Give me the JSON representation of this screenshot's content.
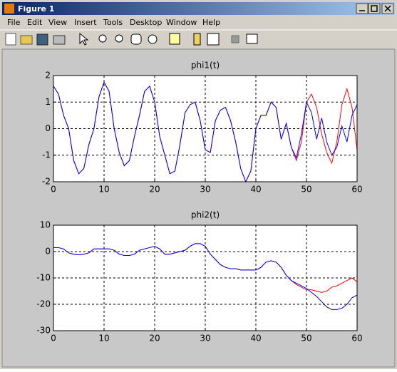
{
  "window": {
    "title": "Figure 1",
    "menu": [
      "File",
      "Edit",
      "View",
      "Insert",
      "Tools",
      "Desktop",
      "Window",
      "Help"
    ]
  },
  "chart_data": [
    {
      "type": "line",
      "title": "phi1(t)",
      "x": [
        0,
        1,
        2,
        3,
        4,
        5,
        6,
        7,
        8,
        9,
        10,
        11,
        12,
        13,
        14,
        15,
        16,
        17,
        18,
        19,
        20,
        21,
        22,
        23,
        24,
        25,
        26,
        27,
        28,
        29,
        30,
        31,
        32,
        33,
        34,
        35,
        36,
        37,
        38,
        39,
        40,
        41,
        42,
        43,
        44,
        45,
        46,
        47,
        48,
        49,
        50,
        51,
        52,
        53,
        54,
        55,
        56,
        57,
        58,
        59,
        60
      ],
      "series": [
        {
          "color": "#ff0000",
          "values": [
            1.6,
            1.3,
            0.5,
            0.0,
            -1.2,
            -1.7,
            -1.5,
            -0.6,
            0.0,
            1.2,
            1.75,
            1.4,
            0.0,
            -0.9,
            -1.4,
            -1.2,
            -0.3,
            0.5,
            1.4,
            1.6,
            1.0,
            -0.3,
            -1.0,
            -1.7,
            -1.6,
            -0.6,
            0.6,
            0.9,
            1.0,
            0.3,
            -0.8,
            -0.9,
            0.3,
            0.7,
            0.8,
            0.3,
            -0.5,
            -1.5,
            -2.0,
            -1.6,
            0.0,
            0.5,
            0.5,
            1.0,
            0.8,
            -0.4,
            0.2,
            -0.7,
            -1.2,
            -0.5,
            1.0,
            1.3,
            0.8,
            -0.2,
            -0.9,
            -1.3,
            -0.5,
            0.9,
            1.5,
            0.8,
            -0.8
          ]
        },
        {
          "color": "#0000ff",
          "values": [
            1.6,
            1.3,
            0.5,
            0.0,
            -1.2,
            -1.7,
            -1.5,
            -0.6,
            0.0,
            1.2,
            1.75,
            1.4,
            0.0,
            -0.9,
            -1.4,
            -1.2,
            -0.3,
            0.5,
            1.4,
            1.6,
            1.0,
            -0.3,
            -1.0,
            -1.7,
            -1.6,
            -0.6,
            0.6,
            0.9,
            1.0,
            0.3,
            -0.8,
            -0.9,
            0.3,
            0.7,
            0.8,
            0.3,
            -0.5,
            -1.5,
            -2.0,
            -1.6,
            0.0,
            0.5,
            0.5,
            1.0,
            0.8,
            -0.4,
            0.2,
            -0.7,
            -1.1,
            -0.2,
            1.0,
            0.6,
            -0.4,
            0.4,
            -0.5,
            -1.0,
            -0.7,
            0.1,
            -0.5,
            0.5,
            0.9
          ]
        }
      ],
      "xlim": [
        0,
        60
      ],
      "xticks": [
        0,
        10,
        20,
        30,
        40,
        50,
        60
      ],
      "ylim": [
        -2,
        2
      ],
      "yticks": [
        -2,
        -1,
        0,
        1,
        2
      ],
      "grid": true
    },
    {
      "type": "line",
      "title": "phi2(t)",
      "x": [
        0,
        1,
        2,
        3,
        4,
        5,
        6,
        7,
        8,
        9,
        10,
        11,
        12,
        13,
        14,
        15,
        16,
        17,
        18,
        19,
        20,
        21,
        22,
        23,
        24,
        25,
        26,
        27,
        28,
        29,
        30,
        31,
        32,
        33,
        34,
        35,
        36,
        37,
        38,
        39,
        40,
        41,
        42,
        43,
        44,
        45,
        46,
        47,
        48,
        49,
        50,
        51,
        52,
        53,
        54,
        55,
        56,
        57,
        58,
        59,
        60
      ],
      "series": [
        {
          "color": "#ff0000",
          "values": [
            1.5,
            1.5,
            1,
            -0.5,
            -1,
            -1.2,
            -1,
            -0.5,
            1,
            1,
            1,
            1,
            0.5,
            -1,
            -1.5,
            -1.5,
            -1,
            0.5,
            1,
            1.5,
            2,
            1,
            -1,
            -1,
            -0.5,
            0,
            0.5,
            2,
            3,
            3,
            2,
            -1,
            -3,
            -5,
            -6,
            -6.5,
            -6.5,
            -7,
            -7,
            -7,
            -7,
            -6,
            -4,
            -3.5,
            -4,
            -6,
            -9,
            -11,
            -12.5,
            -13.5,
            -14.5,
            -14.5,
            -15,
            -15.5,
            -15,
            -13.5,
            -13,
            -12,
            -11,
            -10,
            -11.5
          ]
        },
        {
          "color": "#0000ff",
          "values": [
            1.5,
            1.5,
            1,
            -0.5,
            -1,
            -1.2,
            -1,
            -0.5,
            1,
            1,
            1,
            1,
            0.5,
            -1,
            -1.5,
            -1.5,
            -1,
            0.5,
            1,
            1.5,
            2,
            1,
            -1,
            -1,
            -0.5,
            0,
            0.5,
            2,
            3,
            3,
            2,
            -1,
            -3,
            -5,
            -6,
            -6.5,
            -6.5,
            -7,
            -7,
            -7,
            -7,
            -6,
            -4,
            -3.5,
            -4,
            -6,
            -9,
            -11,
            -12,
            -13,
            -14,
            -15.5,
            -17,
            -19,
            -21,
            -22,
            -22,
            -21.5,
            -20,
            -17.5,
            -16.5
          ]
        }
      ],
      "xlim": [
        0,
        60
      ],
      "xticks": [
        0,
        10,
        20,
        30,
        40,
        50,
        60
      ],
      "ylim": [
        -30,
        10
      ],
      "yticks": [
        -30,
        -20,
        -10,
        0,
        10
      ],
      "grid": true
    }
  ]
}
